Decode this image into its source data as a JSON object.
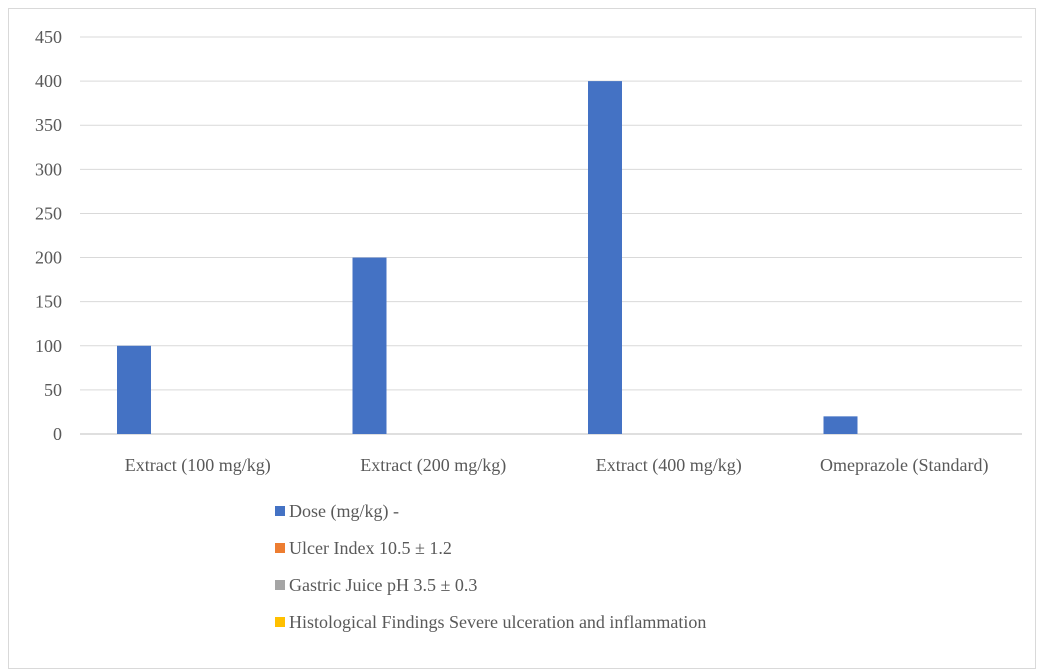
{
  "chart_data": {
    "type": "bar",
    "title": "",
    "xlabel": "",
    "ylabel": "",
    "categories": [
      "Extract (100 mg/kg)",
      "Extract (200 mg/kg)",
      "Extract (400 mg/kg)",
      "Omeprazole (Standard)"
    ],
    "series": [
      {
        "name": "Dose (mg/kg) -",
        "color": "#4472C4",
        "values": [
          100,
          200,
          400,
          20
        ]
      },
      {
        "name": "Ulcer Index 10.5 ± 1.2",
        "color": "#ED7D31",
        "values": [
          0,
          0,
          0,
          0
        ]
      },
      {
        "name": "Gastric Juice pH 3.5 ± 0.3",
        "color": "#A5A5A5",
        "values": [
          0,
          0,
          0,
          0
        ]
      },
      {
        "name": "Histological Findings Severe ulceration and inflammation",
        "color": "#FFC000",
        "values": [
          0,
          0,
          0,
          0
        ]
      }
    ],
    "ylim": [
      0,
      450
    ],
    "yticks": [
      0,
      50,
      100,
      150,
      200,
      250,
      300,
      350,
      400,
      450
    ],
    "grid": true,
    "legend_position": "bottom"
  }
}
